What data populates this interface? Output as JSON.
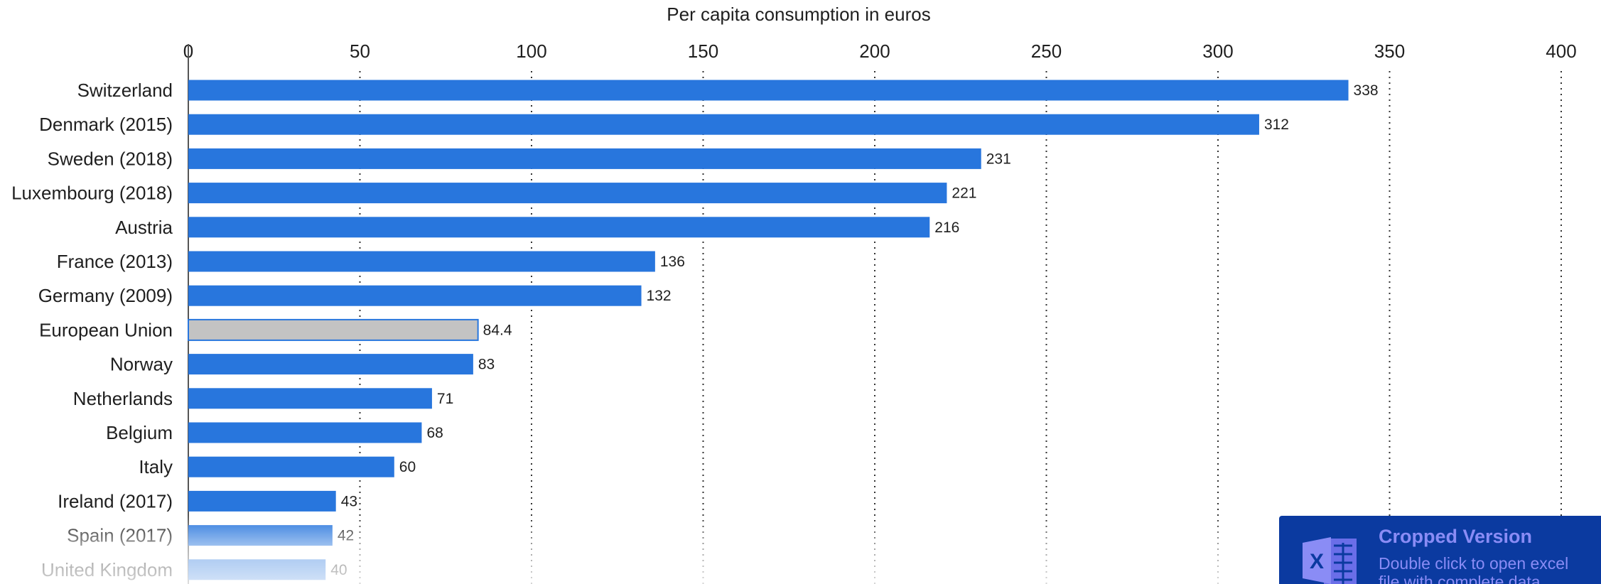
{
  "chart_data": {
    "type": "bar",
    "orientation": "horizontal",
    "xlabel": "Per capita consumption in euros",
    "xlim": [
      0,
      400
    ],
    "ticks": [
      0,
      50,
      100,
      150,
      200,
      250,
      300,
      350,
      400
    ],
    "grid": "vertical dotted",
    "categories": [
      "Switzerland",
      "Denmark (2015)",
      "Sweden (2018)",
      "Luxembourg (2018)",
      "Austria",
      "France (2013)",
      "Germany (2009)",
      "European Union",
      "Norway",
      "Netherlands",
      "Belgium",
      "Italy",
      "Ireland (2017)",
      "Spain (2017)",
      "United Kingdom"
    ],
    "values": [
      338,
      312,
      231,
      221,
      216,
      136,
      132,
      84.4,
      83,
      71,
      68,
      60,
      43,
      42,
      40
    ],
    "value_labels": [
      "338",
      "312",
      "231",
      "221",
      "216",
      "136",
      "132",
      "84.4",
      "83",
      "71",
      "68",
      "60",
      "43",
      "42",
      "40"
    ],
    "colors": {
      "bar": "#2876dd",
      "highlight_bar": "#c3c3c3",
      "highlight_border": "#2876dd"
    },
    "highlight_category": "European Union"
  },
  "banner": {
    "title": "Cropped Version",
    "subtitle": "Double click to open excel file with complete data",
    "icon": "excel-icon",
    "background": "#0b3aa0",
    "text_color": "#8a8cf5"
  }
}
